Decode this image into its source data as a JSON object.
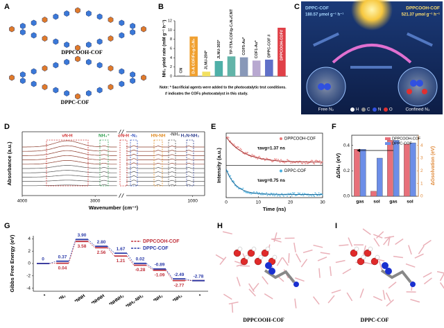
{
  "panel_letters": [
    "A",
    "B",
    "C",
    "D",
    "E",
    "F",
    "G",
    "H",
    "I"
  ],
  "panel_a": {
    "labels": [
      "DPPCOOH-COF",
      "DPPC-COF"
    ]
  },
  "panel_c": {
    "left_title": "DPPC-COF",
    "left_rate": "180.57 μmol g⁻¹ h⁻¹",
    "right_title": "DPPCOOH-COF",
    "right_rate": "521.37 μmol g⁻¹ h⁻¹",
    "left_caption": "Free N₂",
    "right_caption": "Confined N₂",
    "legend": [
      "H",
      "C",
      "N",
      "O"
    ]
  },
  "panel_h": {
    "label": "DPPCOOH-COF"
  },
  "panel_i": {
    "label": "DPPC-COF"
  },
  "chart_data": [
    {
      "type": "bar",
      "ylabel": "NH₃ yield rate (mM g⁻¹ h⁻¹)",
      "categories": [
        "CN",
        "D-A COF/Fe-g-C₃N₄",
        "JLNU-204*",
        "JLNU-303*",
        "TP-TTA-COF/g-C₃N₄/CNT",
        "COF5-Au*",
        "COF1-Au*",
        "DPPC-COF #",
        "DPPCOOH-COF#"
      ],
      "values": [
        0.2,
        8.6,
        1.0,
        3.3,
        4.3,
        4.1,
        3.4,
        3.6,
        10.5
      ],
      "colors": [
        "#9a9a9a",
        "#f0a030",
        "#f2e060",
        "#4fb0a8",
        "#62b4a8",
        "#8898b8",
        "#b8a8d0",
        "#6070c8",
        "#e04048"
      ],
      "ylim": [
        0,
        12
      ],
      "yticks": [
        0,
        2,
        4,
        6,
        8,
        10,
        12
      ],
      "notes": [
        "Note: * Sacrificial agents were added to the photocatalytic test conditions.",
        "# indicates the COFs photocatalyst in this study."
      ]
    },
    {
      "type": "spectra",
      "xlabel": "Wavenumber (cm⁻¹)",
      "ylabel": "Absorbance (a.u.)",
      "xlim": [
        4000,
        800
      ],
      "x_break": [
        2700,
        2100
      ],
      "xticks": [
        4000,
        3000,
        1000
      ],
      "annotations": [
        {
          "text": "νN-H",
          "color": "#d03030"
        },
        {
          "text": "NH₄⁺",
          "color": "#30a050"
        },
        {
          "text": "σN-H",
          "color": "#d03030"
        },
        {
          "text": "-N₂",
          "color": "#3050c0"
        },
        {
          "text": "HN-NH",
          "color": "#e08a20"
        },
        {
          "text": "-NH₂",
          "color": "#555555"
        },
        {
          "text": "H₂N-NH₂",
          "color": "#304090"
        }
      ]
    },
    {
      "type": "decay",
      "xlabel": "Time (ns)",
      "ylabel": "Intensity (a.u.)",
      "xlim": [
        0,
        30
      ],
      "xticks": [
        0,
        10,
        20,
        30
      ],
      "series": [
        {
          "name": "DPPCOOH-COF",
          "color": "#e87878",
          "annotation": "τavg=1.37 ns"
        },
        {
          "name": "DPPC-COF",
          "color": "#48b0e0",
          "annotation": "τavg=0.75 ns"
        }
      ]
    },
    {
      "type": "grouped_bar",
      "ylabel": "ΔGN₂ (eV)",
      "y2label": "ΔGsolvation (eV)",
      "categories": [
        "gas",
        "sol",
        "gas",
        "sol"
      ],
      "category_axes": [
        "y",
        "y",
        "y2",
        "y2"
      ],
      "series": [
        {
          "name": "DPPCOOH-COF",
          "color": "#e8707a",
          "values": [
            0.37,
            0.04,
            4.4,
            4.1
          ]
        },
        {
          "name": "DPPC-COF",
          "color": "#6c8ee8",
          "values": [
            0.37,
            0.3,
            4.4,
            4.2
          ]
        }
      ],
      "ylim": [
        0,
        0.48
      ],
      "yticks": [
        {
          "value": 0,
          "label": "0.0"
        },
        {
          "value": 0.2,
          "label": "0.2"
        },
        {
          "value": 0.4,
          "label": "0.4"
        }
      ],
      "y2lim": [
        0,
        4.8
      ],
      "y2ticks": [
        0,
        1,
        2,
        3,
        4
      ],
      "y2_color": "#e08a3a",
      "legend": "upper right"
    },
    {
      "type": "energy_diagram",
      "ylabel": "Gibbs Free Energy (eV)",
      "categories": [
        "*",
        "*N₂",
        "*NNH",
        "*NHNH",
        "*NHNH₂",
        "*NH₂-NH₂",
        "*NH₂",
        "*NH₃",
        "*"
      ],
      "series": [
        {
          "name": "DPPCOOH-COF",
          "color": "#c0303a",
          "values": [
            0,
            0.04,
            3.58,
            2.56,
            1.21,
            -0.28,
            -1.09,
            -2.77,
            -2.78
          ],
          "value_labels": [
            null,
            "0.04",
            "3.58",
            "2.56",
            "1.21",
            "-0.28",
            "-1.09",
            "-2.77",
            null
          ]
        },
        {
          "name": "DPPC-COF",
          "color": "#2a3aa8",
          "values": [
            0,
            0.37,
            3.9,
            2.8,
            1.67,
            0.02,
            -0.89,
            -2.49,
            -2.78
          ],
          "value_labels": [
            "0",
            "0.37",
            "3.90",
            "2.80",
            "1.67",
            "0.02",
            "-0.89",
            "-2.49",
            "-2.78"
          ]
        }
      ],
      "ylim": [
        -4.5,
        4.5
      ],
      "yticks": [
        -4,
        -2,
        0,
        2,
        4
      ],
      "legend": "upper center"
    }
  ]
}
